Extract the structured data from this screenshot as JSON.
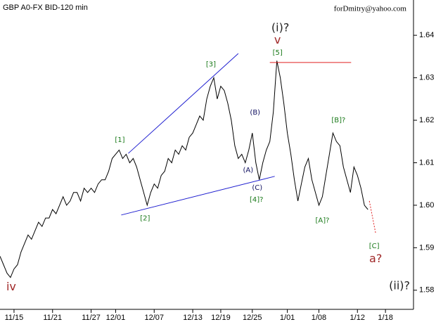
{
  "chart_data": {
    "type": "line",
    "title": "GBP A0-FX BID-120 min",
    "subtitle": "forDmitry@yahoo.com",
    "categories": [
      null,
      null,
      null,
      null,
      "11/15",
      null,
      null,
      null,
      null,
      null,
      null,
      null,
      null,
      null,
      null,
      "11/21",
      null,
      null,
      null,
      null,
      null,
      null,
      null,
      null,
      null,
      null,
      "11/27",
      null,
      null,
      null,
      null,
      null,
      null,
      "12/01",
      null,
      null,
      null,
      null,
      null,
      null,
      null,
      null,
      null,
      null,
      "12/07",
      null,
      null,
      null,
      null,
      null,
      null,
      null,
      null,
      null,
      null,
      "12/13",
      null,
      null,
      null,
      null,
      null,
      null,
      null,
      "12/19",
      null,
      null,
      null,
      null,
      null,
      null,
      null,
      null,
      "12/25",
      null,
      null,
      null,
      null,
      null,
      null,
      null,
      null,
      null,
      "1/01",
      null,
      null,
      null,
      null,
      null,
      null,
      null,
      null,
      "1/08",
      null,
      null,
      null,
      null,
      null,
      null,
      null,
      null,
      null,
      null,
      "1/12",
      null,
      null,
      null,
      null,
      null,
      null,
      null,
      "1/18",
      null,
      null,
      null,
      null,
      null,
      null,
      null
    ],
    "series": [
      {
        "name": "GBP",
        "color": "#000000",
        "values": [
          1.588,
          1.586,
          1.584,
          1.583,
          1.585,
          1.586,
          1.589,
          1.591,
          1.593,
          1.592,
          1.594,
          1.596,
          1.595,
          1.597,
          1.597,
          1.599,
          1.598,
          1.6,
          1.602,
          1.6,
          1.601,
          1.603,
          1.603,
          1.601,
          1.604,
          1.603,
          1.604,
          1.603,
          1.605,
          1.606,
          1.606,
          1.608,
          1.611,
          1.612,
          1.613,
          1.611,
          1.612,
          1.61,
          1.611,
          1.609,
          1.606,
          1.603,
          1.6,
          1.603,
          1.605,
          1.604,
          1.607,
          1.608,
          1.611,
          1.61,
          1.613,
          1.612,
          1.614,
          1.613,
          1.616,
          1.617,
          1.619,
          1.621,
          1.62,
          1.625,
          1.628,
          1.63,
          1.625,
          1.628,
          1.627,
          1.624,
          1.62,
          1.614,
          1.611,
          1.612,
          1.61,
          1.613,
          1.617,
          1.61,
          1.606,
          1.61,
          1.613,
          1.615,
          1.622,
          1.634,
          1.63,
          1.624,
          1.617,
          1.612,
          1.606,
          1.601,
          1.605,
          1.609,
          1.611,
          1.606,
          1.603,
          1.6,
          1.602,
          1.607,
          1.612,
          1.617,
          1.615,
          1.614,
          1.609,
          1.606,
          1.603,
          1.609,
          1.607,
          1.604,
          1.6,
          1.599,
          null,
          null,
          null,
          null,
          null,
          null,
          null,
          null,
          null,
          null,
          null,
          null
        ]
      }
    ],
    "ylim": [
      1.5755,
      1.6483
    ],
    "yticks": [
      1.58,
      1.59,
      {
        "value": 1.6,
        "label": "1.60"
      },
      1.61,
      1.62,
      1.63,
      1.64
    ],
    "trendlines": [
      {
        "x": [
          36.6,
          68
        ],
        "y": [
          1.6122,
          1.6357
        ],
        "color": "#1f1fd0",
        "style": "solid"
      },
      {
        "x": [
          34.6,
          78.4
        ],
        "y": [
          1.5977,
          1.6068
        ],
        "color": "#1f1fd0",
        "style": "solid"
      },
      {
        "x": [
          77,
          100.2
        ],
        "y": [
          1.6336,
          1.6336
        ],
        "color": "#e02020",
        "style": "solid"
      },
      {
        "x": [
          105.4,
          107.2
        ],
        "y": [
          1.601,
          1.5934
        ],
        "color": "#e02020",
        "style": "dotted"
      }
    ],
    "annotations": [
      {
        "text": "(i)?",
        "x": 80,
        "y": 1.6417,
        "color": "#222222",
        "size": "big"
      },
      {
        "text": "v",
        "x": 79.2,
        "y": 1.6388,
        "color": "#a02828",
        "size": "big"
      },
      {
        "text": "[5]",
        "x": 79.2,
        "y": 1.6359,
        "color": "#1a7a1a",
        "size": "small"
      },
      {
        "text": "[3]",
        "x": 60.2,
        "y": 1.6332,
        "color": "#1a7a1a",
        "size": "small"
      },
      {
        "text": "(B)",
        "x": 72.8,
        "y": 1.6218,
        "color": "#101060",
        "size": "small"
      },
      {
        "text": "[B]?",
        "x": 96.6,
        "y": 1.62,
        "color": "#1a7a1a",
        "size": "small"
      },
      {
        "text": "[1]",
        "x": 34.2,
        "y": 1.6154,
        "color": "#1a7a1a",
        "size": "small"
      },
      {
        "text": "(A)",
        "x": 70.8,
        "y": 1.6083,
        "color": "#101060",
        "size": "small"
      },
      {
        "text": "(C)",
        "x": 73.4,
        "y": 1.6041,
        "color": "#101060",
        "size": "small"
      },
      {
        "text": "[4]?",
        "x": 73.2,
        "y": 1.6013,
        "color": "#1a7a1a",
        "size": "small"
      },
      {
        "text": "[2]",
        "x": 41.4,
        "y": 1.5969,
        "color": "#1a7a1a",
        "size": "small"
      },
      {
        "text": "[A]?",
        "x": 92,
        "y": 1.5964,
        "color": "#1a7a1a",
        "size": "small"
      },
      {
        "text": "[C]",
        "x": 106.8,
        "y": 1.5904,
        "color": "#1a7a1a",
        "size": "small"
      },
      {
        "text": "a?",
        "x": 107.2,
        "y": 1.5873,
        "color": "#a02828",
        "size": "big"
      },
      {
        "text": "iv",
        "x": 3.2,
        "y": 1.5807,
        "color": "#a02828",
        "size": "big"
      },
      {
        "text": "(ii)?",
        "x": 114,
        "y": 1.581,
        "color": "#222222",
        "size": "big"
      }
    ]
  }
}
